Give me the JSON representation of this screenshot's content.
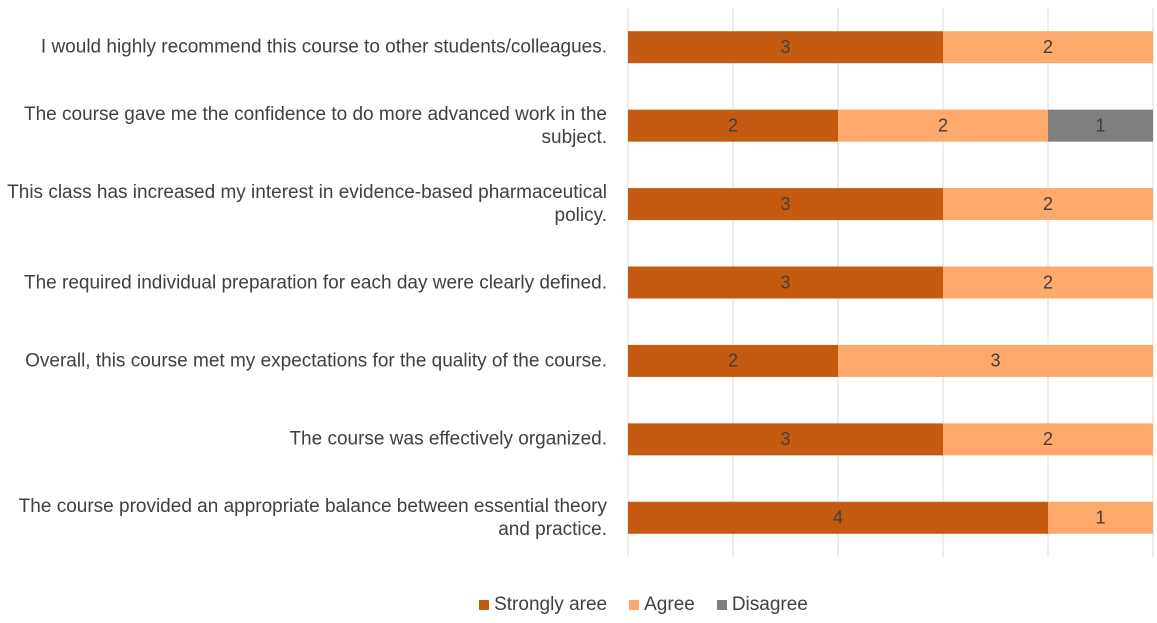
{
  "chart_data": {
    "type": "stacked-barh",
    "categories": [
      "I would highly recommend this course to other students/colleagues.",
      "The course gave me the confidence to do more advanced work in the subject.",
      "This class has increased my interest in evidence-based pharmaceutical policy.",
      "The required individual preparation for each day were clearly defined.",
      "Overall, this course met my expectations for the quality of the course.",
      "The course was effectively organized.",
      "The course provided an appropriate balance between essential theory and practice."
    ],
    "series": [
      {
        "name": "Strongly aree",
        "color": "#c55a11",
        "values": [
          3,
          2,
          3,
          3,
          2,
          3,
          4
        ]
      },
      {
        "name": "Agree",
        "color": "#fda96b",
        "values": [
          2,
          2,
          2,
          2,
          3,
          2,
          1
        ]
      },
      {
        "name": "Disagree",
        "color": "#7f7f7f",
        "values": [
          null,
          1,
          null,
          null,
          null,
          null,
          null
        ]
      }
    ],
    "xlim": [
      0,
      5
    ],
    "xticks": [
      0,
      1,
      2,
      3,
      4,
      5
    ],
    "grid": true,
    "legend": "bottom"
  }
}
